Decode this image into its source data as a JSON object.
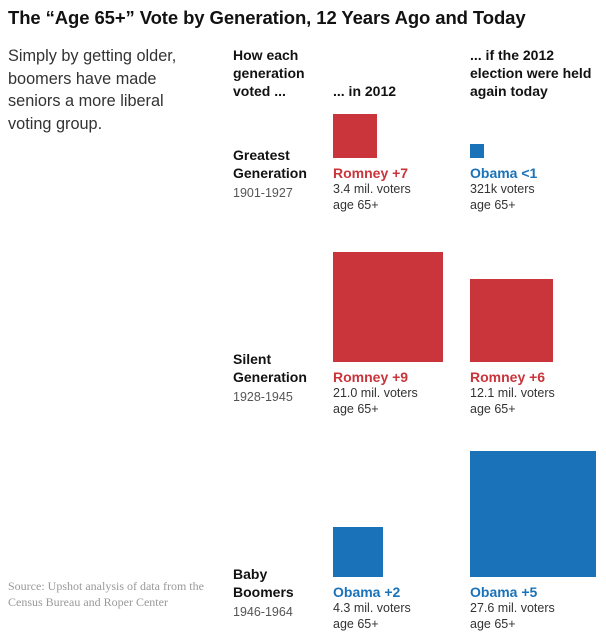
{
  "title": "The “Age 65+” Vote by Generation, 12 Years Ago and Today",
  "subtitle": "Simply by getting older, boomers have made seniors a more liberal voting group.",
  "source": "Source: Upshot analysis of data from the Census Bureau and Roper Center",
  "headers": {
    "generation": "How each generation voted ...",
    "in2012": "... in 2012",
    "today": "... if the 2012 election were held again today"
  },
  "colors": {
    "romney": "#c9353a",
    "obama": "#1a72b8"
  },
  "chart_data": {
    "type": "proportional-area squares",
    "columns": [
      "... in 2012",
      "... if the 2012 election were held again today"
    ],
    "rows": [
      {
        "generation": "Greatest Generation",
        "years": "1901-1927",
        "in2012": {
          "margin_label": "Romney +7",
          "winner": "romney",
          "voters_millions": 3.4,
          "voters_label": "3.4 mil. voters",
          "age_label": "age 65+"
        },
        "today": {
          "margin_label": "Obama <1",
          "winner": "obama",
          "voters_millions": 0.321,
          "voters_label": "321k voters",
          "age_label": "age 65+"
        }
      },
      {
        "generation": "Silent Generation",
        "years": "1928-1945",
        "in2012": {
          "margin_label": "Romney +9",
          "winner": "romney",
          "voters_millions": 21.0,
          "voters_label": "21.0 mil. voters",
          "age_label": "age 65+"
        },
        "today": {
          "margin_label": "Romney +6",
          "winner": "romney",
          "voters_millions": 12.1,
          "voters_label": "12.1 mil. voters",
          "age_label": "age 65+"
        }
      },
      {
        "generation": "Baby Boomers",
        "years": "1946-1964",
        "in2012": {
          "margin_label": "Obama +2",
          "winner": "obama",
          "voters_millions": 4.3,
          "voters_label": "4.3 mil. voters",
          "age_label": "age 65+"
        },
        "today": {
          "margin_label": "Obama +5",
          "winner": "obama",
          "voters_millions": 27.6,
          "voters_label": "27.6 mil. voters",
          "age_label": "age 65+"
        }
      }
    ]
  }
}
